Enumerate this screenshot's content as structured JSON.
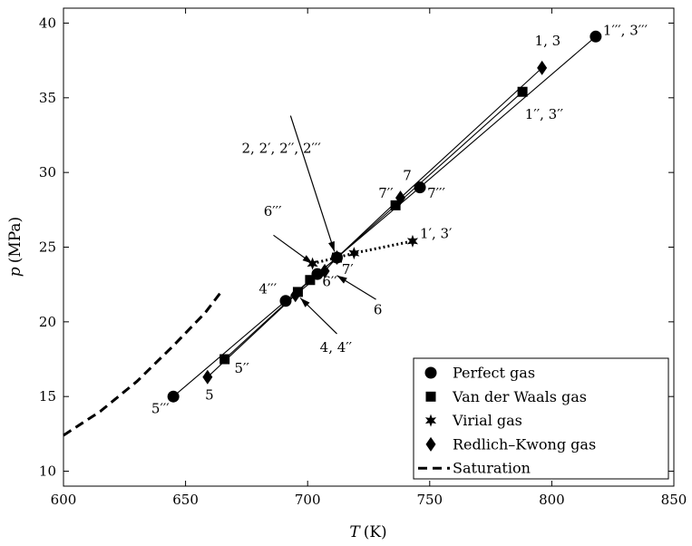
{
  "chart_data": {
    "type": "scatter",
    "title": "",
    "xlabel": "T (K)",
    "xlabel_var": "T",
    "xlabel_unit": "(K)",
    "ylabel": "p (MPa)",
    "ylabel_var": "p",
    "ylabel_unit": "(MPa)",
    "xlim": [
      600,
      850
    ],
    "ylim": [
      9,
      41
    ],
    "xticks": [
      600,
      650,
      700,
      750,
      800,
      850
    ],
    "yticks": [
      10,
      15,
      20,
      25,
      30,
      35,
      40
    ],
    "grid": false,
    "legend_position": "bottom-right",
    "series": [
      {
        "name": "Perfect gas",
        "marker": "circle",
        "line": "solid",
        "points": [
          [
            645,
            15.0
          ],
          [
            691,
            21.4
          ],
          [
            704,
            23.2
          ],
          [
            712,
            24.3
          ],
          [
            746,
            29.0
          ],
          [
            818,
            39.1
          ]
        ]
      },
      {
        "name": "Van der Waals gas",
        "marker": "square",
        "line": "solid",
        "points": [
          [
            666,
            17.5
          ],
          [
            696,
            22.0
          ],
          [
            701,
            22.8
          ],
          [
            712,
            24.3
          ],
          [
            736,
            27.8
          ],
          [
            788,
            35.4
          ]
        ]
      },
      {
        "name": "Virial gas",
        "marker": "star",
        "line": "dotted",
        "points": [
          [
            702,
            23.9
          ],
          [
            712,
            24.3
          ],
          [
            719,
            24.6
          ],
          [
            743,
            25.4
          ]
        ]
      },
      {
        "name": "Redlich–Kwong gas",
        "marker": "diamond",
        "line": "solid",
        "points": [
          [
            659,
            16.3
          ],
          [
            695,
            21.8
          ],
          [
            707,
            23.4
          ],
          [
            712,
            24.3
          ],
          [
            738,
            28.3
          ],
          [
            796,
            37.0
          ]
        ]
      },
      {
        "name": "Saturation",
        "marker": "none",
        "line": "dashed",
        "points": [
          [
            600,
            12.4
          ],
          [
            615,
            14.0
          ],
          [
            630,
            16.0
          ],
          [
            645,
            18.4
          ],
          [
            658,
            20.6
          ],
          [
            665,
            22.1
          ]
        ]
      }
    ],
    "labels": [
      {
        "text": "1, 3",
        "x": 793,
        "y": 38.5
      },
      {
        "text": "1′′′, 3′′′",
        "x": 821,
        "y": 39.2
      },
      {
        "text": "1′′, 3′′",
        "x": 789,
        "y": 33.6
      },
      {
        "text": "7",
        "x": 739,
        "y": 29.5
      },
      {
        "text": "7′′",
        "x": 729,
        "y": 28.3
      },
      {
        "text": "7′′′",
        "x": 749,
        "y": 28.3
      },
      {
        "text": "2, 2′, 2′′, 2′′′",
        "x": 673,
        "y": 31.3
      },
      {
        "text": "6′′′",
        "x": 682,
        "y": 27.1
      },
      {
        "text": "1′, 3′",
        "x": 746,
        "y": 25.6
      },
      {
        "text": "7′",
        "x": 714,
        "y": 23.2
      },
      {
        "text": "4′′′",
        "x": 680,
        "y": 21.9
      },
      {
        "text": "6′′",
        "x": 706,
        "y": 22.4
      },
      {
        "text": "6",
        "x": 727,
        "y": 20.5
      },
      {
        "text": "4, 4′′",
        "x": 705,
        "y": 18.0
      },
      {
        "text": "5′′",
        "x": 670,
        "y": 16.6
      },
      {
        "text": "5",
        "x": 658,
        "y": 14.8
      },
      {
        "text": "5′′′",
        "x": 636,
        "y": 13.9
      }
    ],
    "arrows": [
      {
        "from": [
          693,
          33.8
        ],
        "to": [
          711,
          24.7
        ]
      },
      {
        "from": [
          686,
          25.8
        ],
        "to": [
          702,
          23.9
        ]
      },
      {
        "from": [
          728,
          21.5
        ],
        "to": [
          712,
          23.1
        ]
      },
      {
        "from": [
          712,
          19.2
        ],
        "to": [
          697,
          21.6
        ]
      }
    ]
  }
}
